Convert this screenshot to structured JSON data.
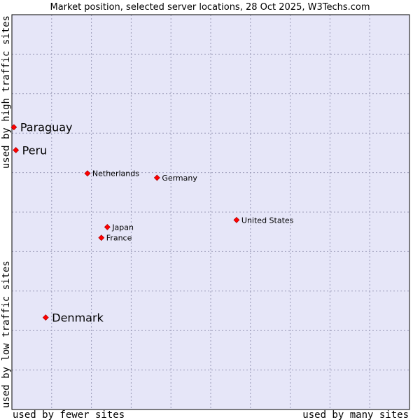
{
  "chart_data": {
    "type": "scatter",
    "title": "Market position, selected server locations, 28 Oct 2025, W3Techs.com",
    "xlabel_left": "used by fewer sites",
    "xlabel_right": "used by many sites",
    "ylabel_top": "used by high traffic sites",
    "ylabel_bottom": "used by low traffic sites",
    "grid": true,
    "xlim": [
      0,
      100
    ],
    "ylim": [
      0,
      100
    ],
    "colors": {
      "plot_bg": "#e6e6f8",
      "grid": "#9a9ab8",
      "border": "#000000",
      "marker": "#ff0000",
      "marker_edge": "#a00000"
    },
    "points": [
      {
        "name": "Paraguay",
        "x": 0.5,
        "y": 71.5,
        "emphasis": true
      },
      {
        "name": "Peru",
        "x": 1.0,
        "y": 65.7,
        "emphasis": true
      },
      {
        "name": "Netherlands",
        "x": 19.0,
        "y": 59.8,
        "emphasis": false
      },
      {
        "name": "Germany",
        "x": 36.5,
        "y": 58.7,
        "emphasis": false
      },
      {
        "name": "United States",
        "x": 56.5,
        "y": 48.0,
        "emphasis": false
      },
      {
        "name": "Japan",
        "x": 24.0,
        "y": 46.2,
        "emphasis": false
      },
      {
        "name": "France",
        "x": 22.5,
        "y": 43.5,
        "emphasis": false
      },
      {
        "name": "Denmark",
        "x": 8.5,
        "y": 23.3,
        "emphasis": true
      }
    ]
  }
}
